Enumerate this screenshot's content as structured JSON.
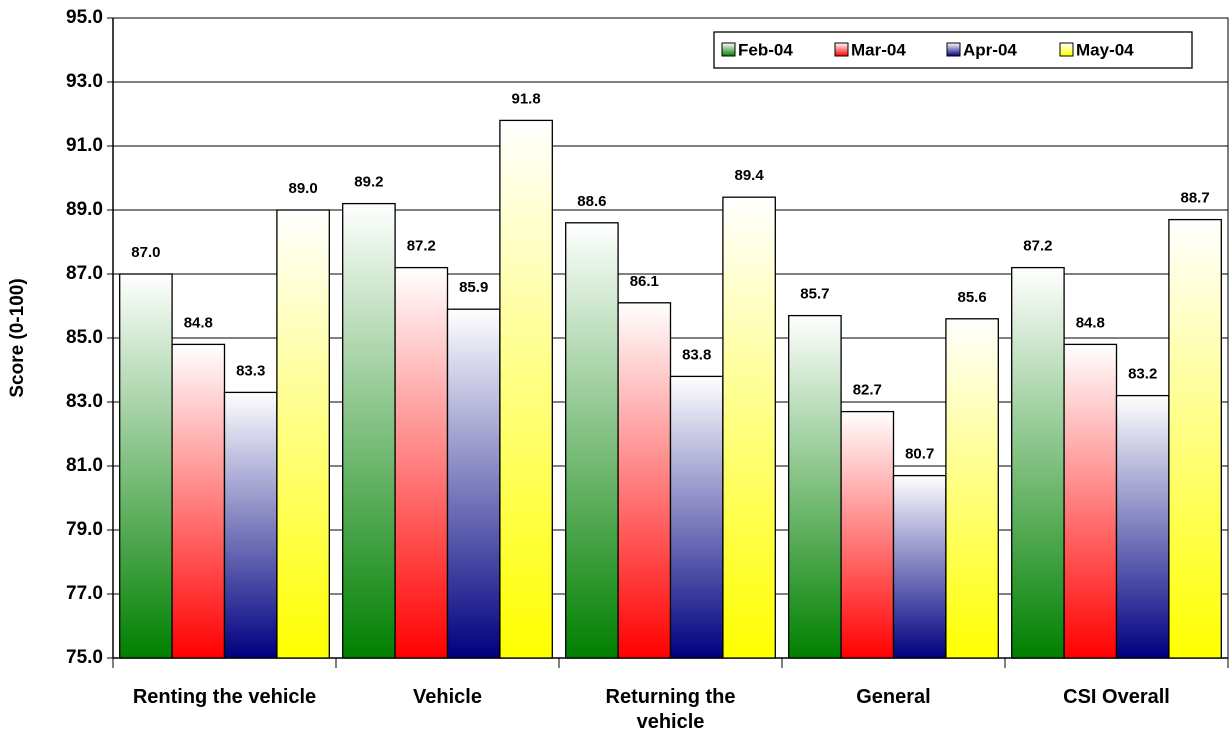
{
  "chart_data": {
    "type": "bar",
    "y_label": "Score (0-100)",
    "categories": [
      "Renting the vehicle",
      "Vehicle",
      "Returning the vehicle",
      "General",
      "CSI Overall"
    ],
    "series": [
      {
        "name": "Feb-04",
        "color": "#008000",
        "values": [
          87.0,
          89.2,
          88.6,
          85.7,
          87.2
        ],
        "value_labels": [
          "87.0",
          "89.2",
          "88.6",
          "85.7",
          "87.2"
        ]
      },
      {
        "name": "Mar-04",
        "color": "#ff0000",
        "values": [
          84.8,
          87.2,
          86.1,
          82.7,
          84.8
        ],
        "value_labels": [
          "84.8",
          "87.2",
          "86.1",
          "82.7",
          "84.8"
        ]
      },
      {
        "name": "Apr-04",
        "color": "#000080",
        "values": [
          83.3,
          85.9,
          83.8,
          80.7,
          83.2
        ],
        "value_labels": [
          "83.3",
          "85.9",
          "83.8",
          "80.7",
          "83.2"
        ]
      },
      {
        "name": "May-04",
        "color": "#ffff00",
        "values": [
          89.0,
          91.8,
          89.4,
          85.6,
          88.7
        ],
        "value_labels": [
          "89.0",
          "91.8",
          "89.4",
          "85.6",
          "88.7"
        ]
      }
    ],
    "ylim": [
      75,
      95
    ],
    "yticks": [
      {
        "value": 75,
        "label": "75.0"
      },
      {
        "value": 77,
        "label": "77.0"
      },
      {
        "value": 79,
        "label": "79.0"
      },
      {
        "value": 81,
        "label": "81.0"
      },
      {
        "value": 83,
        "label": "83.0"
      },
      {
        "value": 85,
        "label": "85.0"
      },
      {
        "value": 87,
        "label": "87.0"
      },
      {
        "value": 89,
        "label": "89.0"
      },
      {
        "value": 91,
        "label": "91.0"
      },
      {
        "value": 93,
        "label": "93.0"
      },
      {
        "value": 95,
        "label": "95.0"
      }
    ],
    "grid": true,
    "legend": "top-right"
  }
}
